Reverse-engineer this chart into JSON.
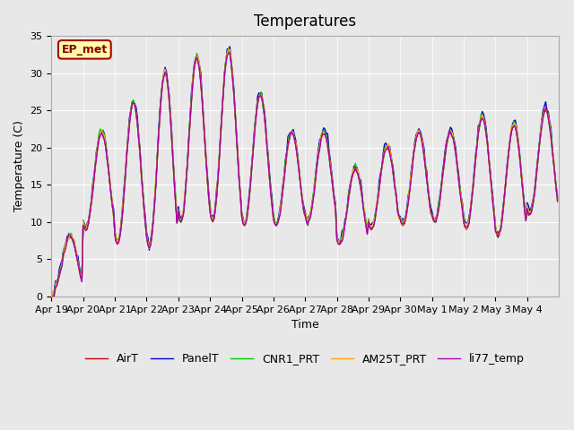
{
  "title": "Temperatures",
  "xlabel": "Time",
  "ylabel": "Temperature (C)",
  "ylim": [
    0,
    35
  ],
  "yticks": [
    0,
    5,
    10,
    15,
    20,
    25,
    30,
    35
  ],
  "background_color": "#e8e8e8",
  "annotation_text": "EP_met",
  "annotation_bg": "#ffffaa",
  "annotation_border": "#aa0000",
  "x_tick_labels": [
    "Apr 19",
    "Apr 20",
    "Apr 21",
    "Apr 22",
    "Apr 23",
    "Apr 24",
    "Apr 25",
    "Apr 26",
    "Apr 27",
    "Apr 28",
    "Apr 29",
    "Apr 30",
    "May 1",
    "May 2",
    "May 3",
    "May 4"
  ],
  "legend_labels": [
    "AirT",
    "PanelT",
    "CNR1_PRT",
    "AM25T_PRT",
    "li77_temp"
  ],
  "line_colors": [
    "#cc0000",
    "#0000cc",
    "#00cc00",
    "#ffaa00",
    "#aa00aa"
  ],
  "title_fontsize": 12,
  "axis_fontsize": 9,
  "tick_fontsize": 8,
  "legend_fontsize": 9,
  "daily_peaks": [
    8,
    22,
    26,
    30,
    32,
    33,
    27,
    22,
    22,
    17,
    20,
    22,
    22,
    24,
    23,
    25
  ],
  "daily_mins": [
    1,
    9,
    7,
    6.5,
    10,
    10,
    9.5,
    9.5,
    10,
    7,
    9,
    9.5,
    10,
    9,
    8,
    11
  ]
}
